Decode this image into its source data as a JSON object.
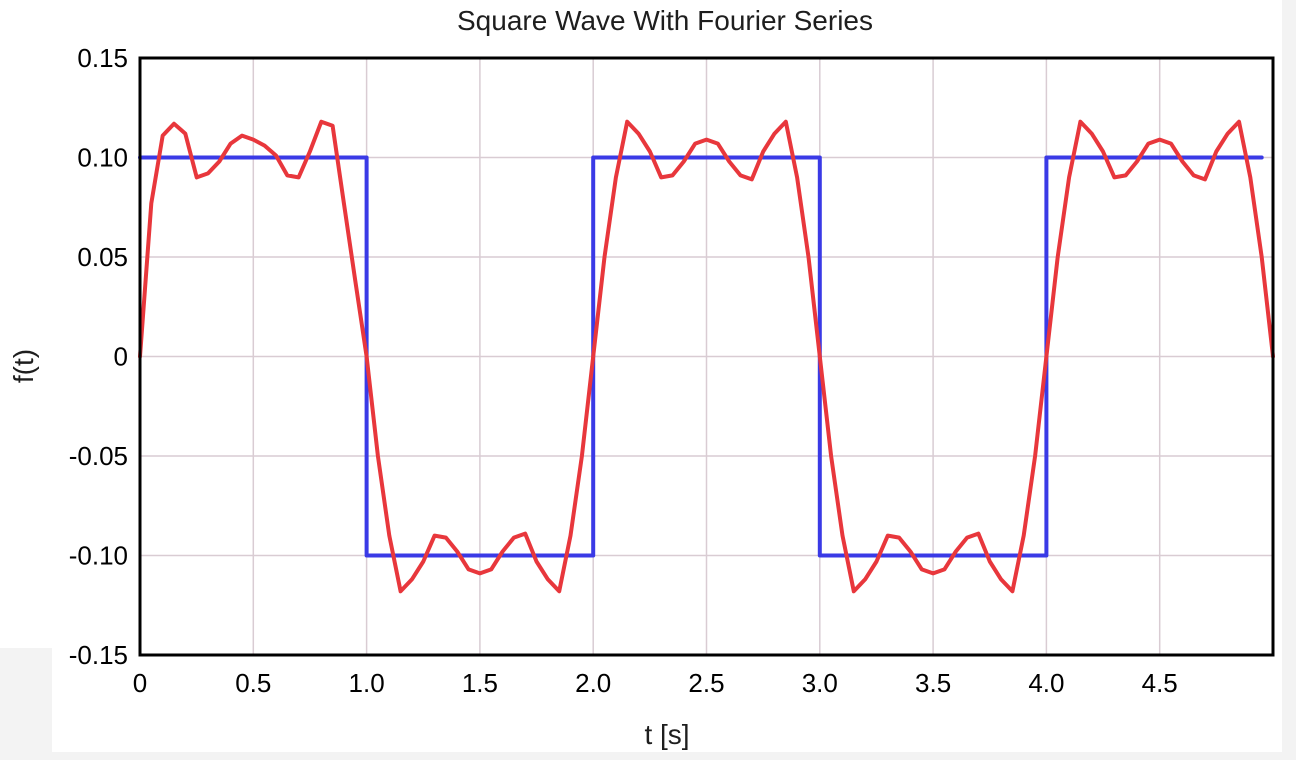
{
  "chart_data": {
    "type": "line",
    "title": "Square Wave With Fourier Series",
    "xlabel": "t [s]",
    "ylabel": "f(t)",
    "xlim": [
      0,
      5
    ],
    "ylim": [
      -0.15,
      0.15
    ],
    "xticks": [
      0,
      0.5,
      1.0,
      1.5,
      2.0,
      2.5,
      3.0,
      3.5,
      4.0,
      4.5
    ],
    "xtick_labels": [
      "0",
      "0.5",
      "1.0",
      "1.5",
      "2.0",
      "2.5",
      "3.0",
      "3.5",
      "4.0",
      "4.5"
    ],
    "yticks": [
      0.15,
      0.1,
      0.05,
      0,
      -0.05,
      -0.1,
      -0.15
    ],
    "ytick_labels": [
      "0.15",
      "0.10",
      "0.05",
      "0",
      "-0.05",
      "-0.10",
      "-0.15"
    ],
    "grid": true,
    "series": [
      {
        "color": "#3a3ae6",
        "points": [
          [
            0,
            0.1
          ],
          [
            1.0,
            0.1
          ],
          [
            1.0,
            -0.1
          ],
          [
            2.0,
            -0.1
          ],
          [
            2.0,
            0.1
          ],
          [
            3.0,
            0.1
          ],
          [
            3.0,
            -0.1
          ],
          [
            4.0,
            -0.1
          ],
          [
            4.0,
            0.1
          ],
          [
            4.95,
            0.1
          ]
        ]
      },
      {
        "color": "#e8373c",
        "points": [
          [
            0.0,
            0.0
          ],
          [
            0.05,
            0.077
          ],
          [
            0.1,
            0.111
          ],
          [
            0.15,
            0.117
          ],
          [
            0.2,
            0.112
          ],
          [
            0.25,
            0.09
          ],
          [
            0.3,
            0.092
          ],
          [
            0.35,
            0.098
          ],
          [
            0.4,
            0.107
          ],
          [
            0.45,
            0.111
          ],
          [
            0.5,
            0.109
          ],
          [
            0.55,
            0.106
          ],
          [
            0.6,
            0.101
          ],
          [
            0.65,
            0.091
          ],
          [
            0.7,
            0.09
          ],
          [
            0.75,
            0.103
          ],
          [
            0.8,
            0.118
          ],
          [
            0.85,
            0.116
          ],
          [
            0.9,
            0.077
          ],
          [
            0.95,
            0.038
          ],
          [
            1.0,
            0.0
          ],
          [
            1.05,
            -0.05
          ],
          [
            1.1,
            -0.09
          ],
          [
            1.15,
            -0.118
          ],
          [
            1.2,
            -0.112
          ],
          [
            1.25,
            -0.103
          ],
          [
            1.3,
            -0.09
          ],
          [
            1.35,
            -0.091
          ],
          [
            1.4,
            -0.098
          ],
          [
            1.45,
            -0.107
          ],
          [
            1.5,
            -0.109
          ],
          [
            1.55,
            -0.107
          ],
          [
            1.6,
            -0.098
          ],
          [
            1.65,
            -0.091
          ],
          [
            1.7,
            -0.089
          ],
          [
            1.75,
            -0.103
          ],
          [
            1.8,
            -0.112
          ],
          [
            1.85,
            -0.118
          ],
          [
            1.9,
            -0.09
          ],
          [
            1.95,
            -0.05
          ],
          [
            2.0,
            0.0
          ],
          [
            2.05,
            0.05
          ],
          [
            2.1,
            0.09
          ],
          [
            2.15,
            0.118
          ],
          [
            2.2,
            0.112
          ],
          [
            2.25,
            0.103
          ],
          [
            2.3,
            0.09
          ],
          [
            2.35,
            0.091
          ],
          [
            2.4,
            0.098
          ],
          [
            2.45,
            0.107
          ],
          [
            2.5,
            0.109
          ],
          [
            2.55,
            0.107
          ],
          [
            2.6,
            0.098
          ],
          [
            2.65,
            0.091
          ],
          [
            2.7,
            0.089
          ],
          [
            2.75,
            0.103
          ],
          [
            2.8,
            0.112
          ],
          [
            2.85,
            0.118
          ],
          [
            2.9,
            0.09
          ],
          [
            2.95,
            0.05
          ],
          [
            3.0,
            0.0
          ],
          [
            3.05,
            -0.05
          ],
          [
            3.1,
            -0.09
          ],
          [
            3.15,
            -0.118
          ],
          [
            3.2,
            -0.112
          ],
          [
            3.25,
            -0.103
          ],
          [
            3.3,
            -0.09
          ],
          [
            3.35,
            -0.091
          ],
          [
            3.4,
            -0.098
          ],
          [
            3.45,
            -0.107
          ],
          [
            3.5,
            -0.109
          ],
          [
            3.55,
            -0.107
          ],
          [
            3.6,
            -0.098
          ],
          [
            3.65,
            -0.091
          ],
          [
            3.7,
            -0.089
          ],
          [
            3.75,
            -0.103
          ],
          [
            3.8,
            -0.112
          ],
          [
            3.85,
            -0.118
          ],
          [
            3.9,
            -0.09
          ],
          [
            3.95,
            -0.05
          ],
          [
            4.0,
            0.0
          ],
          [
            4.05,
            0.05
          ],
          [
            4.1,
            0.09
          ],
          [
            4.15,
            0.118
          ],
          [
            4.2,
            0.112
          ],
          [
            4.25,
            0.103
          ],
          [
            4.3,
            0.09
          ],
          [
            4.35,
            0.091
          ],
          [
            4.4,
            0.098
          ],
          [
            4.45,
            0.107
          ],
          [
            4.5,
            0.109
          ],
          [
            4.55,
            0.107
          ],
          [
            4.6,
            0.098
          ],
          [
            4.65,
            0.091
          ],
          [
            4.7,
            0.089
          ],
          [
            4.75,
            0.103
          ],
          [
            4.8,
            0.112
          ],
          [
            4.85,
            0.118
          ],
          [
            4.9,
            0.09
          ],
          [
            4.95,
            0.05
          ],
          [
            5.0,
            0.0
          ]
        ]
      }
    ]
  }
}
